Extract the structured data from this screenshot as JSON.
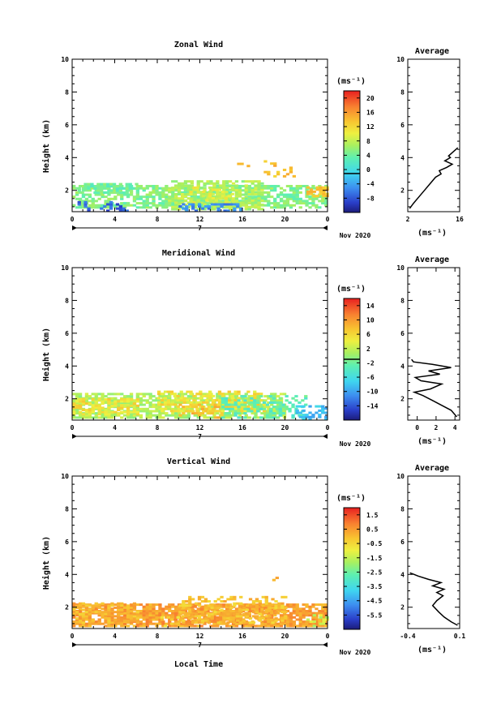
{
  "page": {
    "xlabel": "Local Time"
  },
  "panels": [
    {
      "title": "Zonal Wind",
      "units": "(ms⁻¹)",
      "colorbar_ticks": [
        "20",
        "16",
        "12",
        "8",
        "4",
        "0",
        "-4",
        "-8"
      ],
      "date_label": "Nov 2020",
      "day_label": "7",
      "avg_title": "Average",
      "avg_units": "(ms⁻¹)"
    },
    {
      "title": "Meridional Wind",
      "units": "(ms⁻¹)",
      "colorbar_ticks": [
        "14",
        "10",
        "6",
        "2",
        "-2",
        "-6",
        "-10",
        "-14"
      ],
      "date_label": "Nov 2020",
      "day_label": "7",
      "avg_title": "Average",
      "avg_units": "(ms⁻¹)"
    },
    {
      "title": "Vertical Wind",
      "units": "(ms⁻¹)",
      "colorbar_ticks": [
        "1.5",
        "0.5",
        "-0.5",
        "-1.5",
        "-2.5",
        "-3.5",
        "-4.5",
        "-5.5"
      ],
      "date_label": "Nov 2020",
      "day_label": "7",
      "avg_title": "Average",
      "avg_units": "(ms⁻¹)"
    }
  ],
  "chart_data": [
    {
      "type": "heatmap",
      "title": "Zonal Wind",
      "xlabel": "",
      "ylabel": "Height (km)",
      "xlim": [
        0,
        24
      ],
      "ylim": [
        0.7,
        10
      ],
      "x_ticks": [
        "0",
        "4",
        "8",
        "12",
        "16",
        "20",
        "0"
      ],
      "y_ticks": [
        "2",
        "4",
        "6",
        "8",
        "10"
      ],
      "color_range": [
        -10,
        22
      ],
      "layers": [
        {
          "x": [
            0.0,
            24.0
          ],
          "y": [
            0.9,
            2.2
          ],
          "value": 6,
          "density": 0.65
        },
        {
          "x": [
            0.5,
            6.0
          ],
          "y": [
            1.8,
            2.4
          ],
          "value": 5,
          "density": 0.5
        },
        {
          "x": [
            9.0,
            18.0
          ],
          "y": [
            0.8,
            2.6
          ],
          "value": 8,
          "density": 0.6
        },
        {
          "x": [
            11.0,
            15.0
          ],
          "y": [
            1.2,
            2.2
          ],
          "value": 10,
          "density": 0.35
        },
        {
          "x": [
            0.5,
            5.0
          ],
          "y": [
            0.7,
            1.3
          ],
          "value": -6,
          "density": 0.3
        },
        {
          "x": [
            10.0,
            16.0
          ],
          "y": [
            0.7,
            1.2
          ],
          "value": -4,
          "density": 0.45
        },
        {
          "x": [
            22.0,
            24.0
          ],
          "y": [
            1.6,
            2.2
          ],
          "value": 14,
          "density": 0.7
        },
        {
          "x": [
            15.5,
            16.5
          ],
          "y": [
            3.3,
            3.6
          ],
          "value": 16,
          "density": 0.6
        },
        {
          "x": [
            18.0,
            21.0
          ],
          "y": [
            2.8,
            3.8
          ],
          "value": 14,
          "density": 0.25
        }
      ],
      "average_profile": {
        "xlim": [
          2,
          16
        ],
        "x_ticks": [
          "2",
          "16"
        ],
        "ylim": [
          0.7,
          10
        ],
        "y_ticks": [
          "2",
          "4",
          "6",
          "8",
          "10"
        ],
        "points": [
          [
            2.5,
            0.9
          ],
          [
            3.5,
            1.2
          ],
          [
            5.0,
            1.6
          ],
          [
            6.5,
            2.0
          ],
          [
            8.0,
            2.4
          ],
          [
            9.5,
            2.8
          ],
          [
            11.0,
            3.0
          ],
          [
            10.5,
            3.2
          ],
          [
            12.5,
            3.4
          ],
          [
            14.0,
            3.6
          ],
          [
            12.0,
            3.8
          ],
          [
            13.5,
            4.0
          ],
          [
            13.0,
            4.1
          ],
          [
            14.0,
            4.3
          ],
          [
            15.5,
            4.6
          ]
        ]
      }
    },
    {
      "type": "heatmap",
      "title": "Meridional Wind",
      "xlabel": "",
      "ylabel": "Height (km)",
      "xlim": [
        0,
        24
      ],
      "ylim": [
        0.7,
        10
      ],
      "x_ticks": [
        "0",
        "4",
        "8",
        "12",
        "16",
        "20",
        "0"
      ],
      "y_ticks": [
        "2",
        "4",
        "6",
        "8",
        "10"
      ],
      "color_range": [
        -16,
        16
      ],
      "layers": [
        {
          "x": [
            0.0,
            20.0
          ],
          "y": [
            0.8,
            2.3
          ],
          "value": 2,
          "density": 0.7
        },
        {
          "x": [
            0.0,
            6.0
          ],
          "y": [
            1.0,
            2.0
          ],
          "value": 6,
          "density": 0.45
        },
        {
          "x": [
            8.0,
            18.0
          ],
          "y": [
            1.2,
            2.4
          ],
          "value": 6,
          "density": 0.5
        },
        {
          "x": [
            10.0,
            14.0
          ],
          "y": [
            0.8,
            1.6
          ],
          "value": 8,
          "density": 0.3
        },
        {
          "x": [
            14.0,
            22.0
          ],
          "y": [
            0.8,
            2.2
          ],
          "value": -2,
          "density": 0.35
        },
        {
          "x": [
            21.0,
            24.0
          ],
          "y": [
            0.7,
            1.5
          ],
          "value": -7,
          "density": 0.35
        }
      ],
      "average_profile": {
        "xlim": [
          -1,
          4.5
        ],
        "x_ticks": [
          "0",
          "2",
          "4"
        ],
        "ylim": [
          0.7,
          10
        ],
        "y_ticks": [
          "2",
          "4",
          "6",
          "8",
          "10"
        ],
        "points": [
          [
            4.2,
            0.9
          ],
          [
            3.6,
            1.3
          ],
          [
            2.6,
            1.6
          ],
          [
            1.6,
            1.9
          ],
          [
            0.6,
            2.2
          ],
          [
            -0.3,
            2.4
          ],
          [
            1.4,
            2.6
          ],
          [
            2.6,
            2.9
          ],
          [
            0.4,
            3.1
          ],
          [
            -0.2,
            3.3
          ],
          [
            2.4,
            3.5
          ],
          [
            1.2,
            3.7
          ],
          [
            3.6,
            3.9
          ],
          [
            1.6,
            4.1
          ],
          [
            -0.4,
            4.25
          ],
          [
            -0.6,
            4.4
          ]
        ]
      }
    },
    {
      "type": "heatmap",
      "title": "Vertical Wind",
      "xlabel": "Local Time",
      "ylabel": "Height (km)",
      "xlim": [
        0,
        24
      ],
      "ylim": [
        0.7,
        10
      ],
      "x_ticks": [
        "0",
        "4",
        "8",
        "12",
        "16",
        "20",
        "0"
      ],
      "y_ticks": [
        "2",
        "4",
        "6",
        "8",
        "10"
      ],
      "color_range": [
        -6,
        2
      ],
      "layers": [
        {
          "x": [
            0.0,
            24.0
          ],
          "y": [
            0.8,
            2.2
          ],
          "value": 0.5,
          "density": 0.8
        },
        {
          "x": [
            10.0,
            20.0
          ],
          "y": [
            1.0,
            2.6
          ],
          "value": 0.0,
          "density": 0.45
        },
        {
          "x": [
            0.0,
            6.0
          ],
          "y": [
            1.0,
            2.2
          ],
          "value": 0.2,
          "density": 0.5
        },
        {
          "x": [
            8.0,
            10.0
          ],
          "y": [
            0.8,
            1.5
          ],
          "value": -0.3,
          "density": 0.25
        },
        {
          "x": [
            22.0,
            24.0
          ],
          "y": [
            0.8,
            1.5
          ],
          "value": -1.2,
          "density": 0.35
        },
        {
          "x": [
            18.5,
            19.5
          ],
          "y": [
            3.6,
            3.8
          ],
          "value": 0.6,
          "density": 0.7
        }
      ],
      "average_profile": {
        "xlim": [
          -0.4,
          0.1
        ],
        "x_ticks": [
          "-0.4",
          "0.1"
        ],
        "ylim": [
          0.7,
          10
        ],
        "y_ticks": [
          "2",
          "4",
          "6",
          "8",
          "10"
        ],
        "points": [
          [
            0.08,
            0.9
          ],
          [
            0.02,
            1.1
          ],
          [
            -0.05,
            1.4
          ],
          [
            -0.1,
            1.7
          ],
          [
            -0.16,
            2.1
          ],
          [
            -0.12,
            2.4
          ],
          [
            -0.06,
            2.7
          ],
          [
            -0.12,
            2.9
          ],
          [
            -0.05,
            3.1
          ],
          [
            -0.16,
            3.3
          ],
          [
            -0.08,
            3.5
          ],
          [
            -0.2,
            3.7
          ],
          [
            -0.3,
            3.9
          ],
          [
            -0.38,
            4.1
          ]
        ]
      }
    }
  ]
}
